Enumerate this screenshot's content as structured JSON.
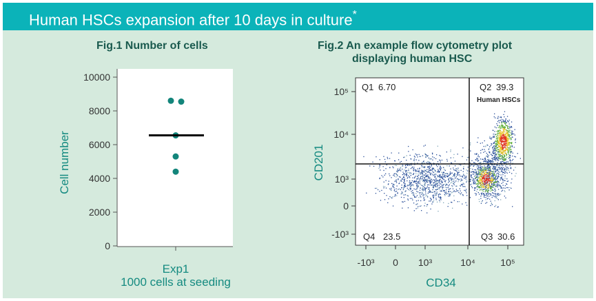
{
  "header": {
    "title": "Human HSCs expansion after 10 days in culture",
    "asterisk": "*"
  },
  "chart_data": [
    {
      "type": "scatter",
      "title": "Fig.1  Number of cells",
      "ylabel": "Cell number",
      "xlabel": "Exp1",
      "xsublabel": "1000 cells at seeding",
      "ylim": [
        0,
        10000
      ],
      "yticks": [
        "0",
        "2000",
        "4000",
        "6000",
        "8000",
        "10000"
      ],
      "category": "Exp1",
      "values": [
        8600,
        8550,
        6550,
        5300,
        4400
      ],
      "median": 6550,
      "color": "#13857b"
    },
    {
      "type": "scatter",
      "title_line1": "Fig.2  An example flow cytometry plot",
      "title_line2": "displaying human HSC",
      "xlabel": "CD34",
      "ylabel": "CD201",
      "xticks": [
        "-10³",
        "0",
        "10³",
        "10⁴",
        "10⁵"
      ],
      "yticks": [
        "10⁵",
        "10⁴",
        "10³",
        "0",
        "-10³"
      ],
      "quadrants": [
        {
          "name": "Q1",
          "value": "6.70"
        },
        {
          "name": "Q2",
          "value": "39.3",
          "note": "Human HSCs"
        },
        {
          "name": "Q3",
          "value": "30.6"
        },
        {
          "name": "Q4",
          "value": "23.5"
        }
      ]
    }
  ]
}
